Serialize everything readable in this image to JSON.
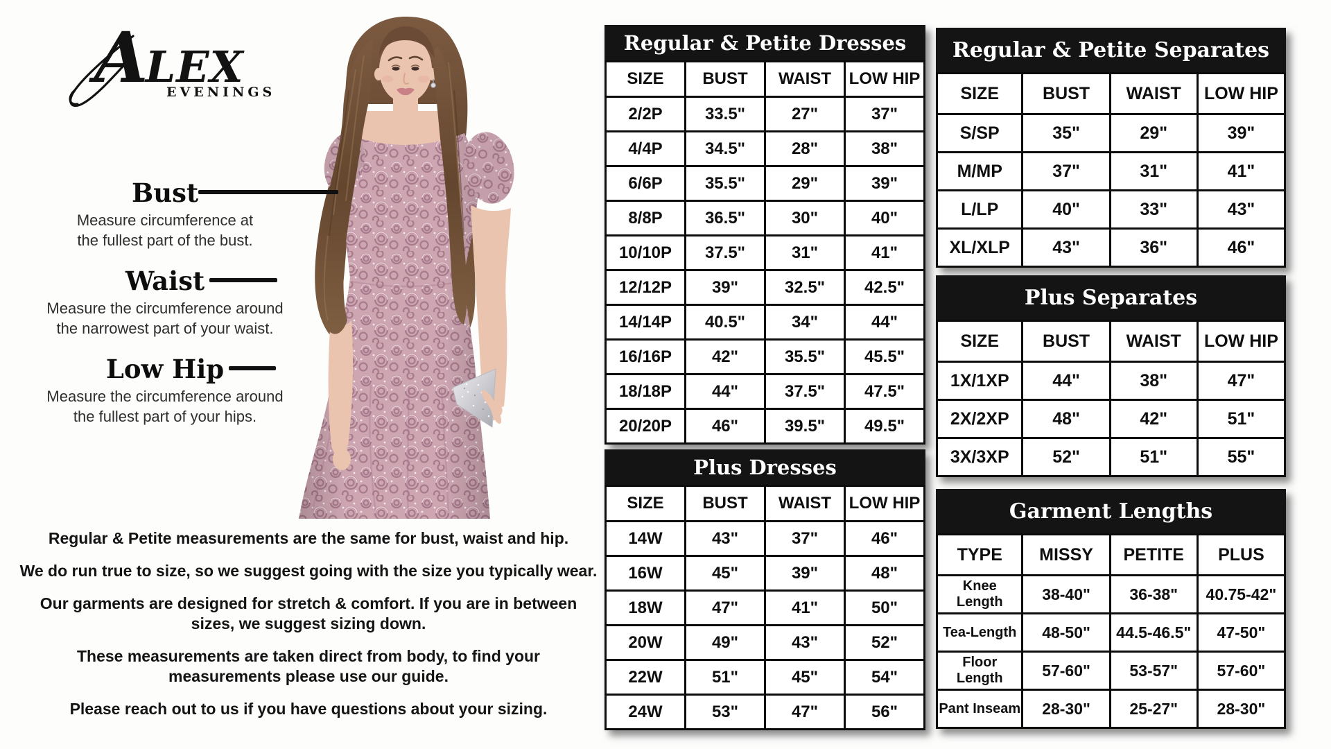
{
  "brand": {
    "name": "ALEX",
    "subname": "EVENINGS"
  },
  "measure_labels": [
    {
      "label": "Bust",
      "d1": "Measure circumference at",
      "d2": "the fullest part of the bust."
    },
    {
      "label": "Waist",
      "d1": "Measure the circumference around",
      "d2": "the narrowest part of your waist."
    },
    {
      "label": "Low Hip",
      "d1": "Measure the circumference around",
      "d2": "the fullest part of your hips."
    }
  ],
  "notes": [
    "Regular & Petite measurements are the same for bust, waist and hip.",
    "We do run true to size, so we suggest going with the size you typically wear.",
    "Our garments are designed for stretch & comfort. If you are in between sizes, we suggest sizing down.",
    "These measurements are taken direct from body, to find your measurements please use our guide.",
    "Please reach out to us if you have questions about your sizing."
  ],
  "tables": {
    "regular_petite_dresses": {
      "title": "Regular & Petite Dresses",
      "headers": [
        "SIZE",
        "BUST",
        "WAIST",
        "LOW HIP"
      ],
      "rows": [
        [
          "2/2P",
          "33.5\"",
          "27\"",
          "37\""
        ],
        [
          "4/4P",
          "34.5\"",
          "28\"",
          "38\""
        ],
        [
          "6/6P",
          "35.5\"",
          "29\"",
          "39\""
        ],
        [
          "8/8P",
          "36.5\"",
          "30\"",
          "40\""
        ],
        [
          "10/10P",
          "37.5\"",
          "31\"",
          "41\""
        ],
        [
          "12/12P",
          "39\"",
          "32.5\"",
          "42.5\""
        ],
        [
          "14/14P",
          "40.5\"",
          "34\"",
          "44\""
        ],
        [
          "16/16P",
          "42\"",
          "35.5\"",
          "45.5\""
        ],
        [
          "18/18P",
          "44\"",
          "37.5\"",
          "47.5\""
        ],
        [
          "20/20P",
          "46\"",
          "39.5\"",
          "49.5\""
        ]
      ]
    },
    "plus_dresses": {
      "title": "Plus Dresses",
      "headers": [
        "SIZE",
        "BUST",
        "WAIST",
        "LOW HIP"
      ],
      "rows": [
        [
          "14W",
          "43\"",
          "37\"",
          "46\""
        ],
        [
          "16W",
          "45\"",
          "39\"",
          "48\""
        ],
        [
          "18W",
          "47\"",
          "41\"",
          "50\""
        ],
        [
          "20W",
          "49\"",
          "43\"",
          "52\""
        ],
        [
          "22W",
          "51\"",
          "45\"",
          "54\""
        ],
        [
          "24W",
          "53\"",
          "47\"",
          "56\""
        ]
      ]
    },
    "regular_petite_separates": {
      "title": "Regular & Petite Separates",
      "headers": [
        "SIZE",
        "BUST",
        "WAIST",
        "LOW HIP"
      ],
      "rows": [
        [
          "S/SP",
          "35\"",
          "29\"",
          "39\""
        ],
        [
          "M/MP",
          "37\"",
          "31\"",
          "41\""
        ],
        [
          "L/LP",
          "40\"",
          "33\"",
          "43\""
        ],
        [
          "XL/XLP",
          "43\"",
          "36\"",
          "46\""
        ]
      ]
    },
    "plus_separates": {
      "title": "Plus Separates",
      "headers": [
        "SIZE",
        "BUST",
        "WAIST",
        "LOW HIP"
      ],
      "rows": [
        [
          "1X/1XP",
          "44\"",
          "38\"",
          "47\""
        ],
        [
          "2X/2XP",
          "48\"",
          "42\"",
          "51\""
        ],
        [
          "3X/3XP",
          "52\"",
          "51\"",
          "55\""
        ]
      ]
    },
    "garment_lengths": {
      "title": "Garment Lengths",
      "headers": [
        "TYPE",
        "MISSY",
        "PETITE",
        "PLUS"
      ],
      "rows": [
        [
          "Knee Length",
          "38-40\"",
          "36-38\"",
          "40.75-42\""
        ],
        [
          "Tea-Length",
          "48-50\"",
          "44.5-46.5\"",
          "47-50\""
        ],
        [
          "Floor Length",
          "57-60\"",
          "53-57\"",
          "57-60\""
        ],
        [
          "Pant Inseam",
          "28-30\"",
          "25-27\"",
          "28-30\""
        ]
      ]
    }
  },
  "colors": {
    "header_bg": "#141414",
    "header_text": "#ffffff",
    "table_border": "#0c0c0c",
    "pointer_line": "#101010",
    "dress_base": "#cda6b2",
    "dress_rosette": "#a77a8c",
    "hair": "#6b4b35",
    "skin": "#eac4ae",
    "clutch": "#c9c9cf"
  }
}
